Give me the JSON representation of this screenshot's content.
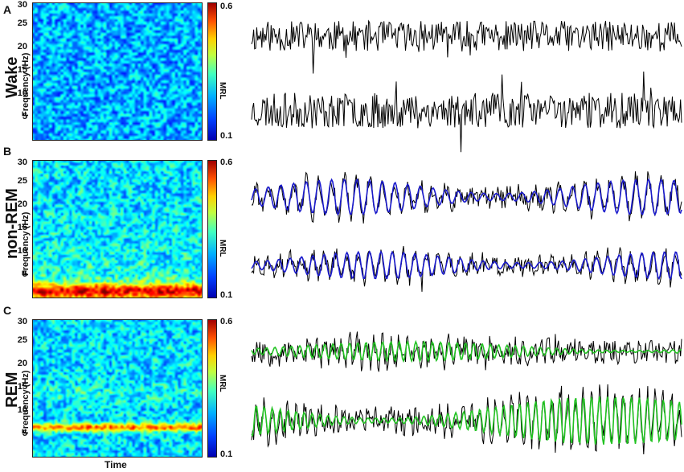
{
  "panels": [
    {
      "letter": "A",
      "state": "Wake",
      "filter_color": "",
      "theta_band": false,
      "delta_band": false
    },
    {
      "letter": "B",
      "state": "non-REM",
      "filter_color": "#1a1acc",
      "theta_band": false,
      "delta_band": true
    },
    {
      "letter": "C",
      "state": "REM",
      "filter_color": "#22c322",
      "theta_band": true,
      "delta_band": false
    }
  ],
  "y_axis_label": "Frequency (Hz)",
  "y_ticks": [
    "30",
    "25",
    "20",
    "15",
    "10",
    "5"
  ],
  "colorbar": {
    "label": "MRL",
    "max": "0.6",
    "min": "0.1"
  },
  "x_axis_label": "Time",
  "colors": {
    "raw_trace": "#000000",
    "nrem_filtered": "#1a1acc",
    "rem_filtered": "#22c322"
  }
}
